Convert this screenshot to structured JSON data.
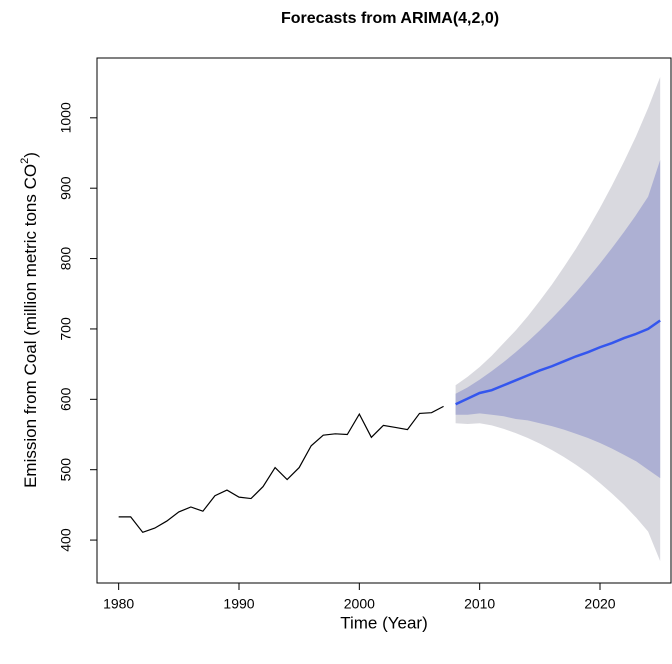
{
  "chart_data": {
    "type": "line",
    "title": "Forecasts from ARIMA(4,2,0)",
    "xlabel": "Time (Year)",
    "ylabel": [
      "Emission from Coal (million metric tons CO",
      "2",
      ")"
    ],
    "xlim": [
      1978.2,
      2025.9
    ],
    "ylim": [
      339,
      1085
    ],
    "xticks": [
      1980,
      1990,
      2000,
      2010,
      2020
    ],
    "yticks": [
      400,
      500,
      600,
      700,
      800,
      900,
      1000
    ],
    "grid": false,
    "bands": [
      {
        "color": "#d9d9df",
        "x": [
          2008,
          2009,
          2010,
          2011,
          2012,
          2013,
          2014,
          2015,
          2016,
          2017,
          2018,
          2019,
          2020,
          2021,
          2022,
          2023,
          2024,
          2025
        ],
        "lower": [
          566,
          565,
          566,
          563,
          558,
          552,
          545,
          537,
          528,
          518,
          507,
          495,
          481,
          466,
          450,
          432,
          412,
          370
        ],
        "upper": [
          620,
          632,
          646,
          662,
          680,
          698,
          718,
          740,
          763,
          788,
          814,
          842,
          872,
          904,
          938,
          974,
          1014,
          1058
        ]
      },
      {
        "color": "#adb0d3",
        "x": [
          2008,
          2009,
          2010,
          2011,
          2012,
          2013,
          2014,
          2015,
          2016,
          2017,
          2018,
          2019,
          2020,
          2021,
          2022,
          2023,
          2024,
          2025
        ],
        "lower": [
          578,
          578,
          580,
          578,
          576,
          572,
          570,
          566,
          562,
          557,
          551,
          545,
          538,
          530,
          521,
          512,
          500,
          488
        ],
        "upper": [
          608,
          617,
          628,
          640,
          653,
          667,
          682,
          698,
          715,
          733,
          752,
          772,
          793,
          815,
          838,
          862,
          888,
          940
        ]
      }
    ],
    "series": [
      {
        "color": "#000000",
        "x": [
          1980,
          1981,
          1982,
          1983,
          1984,
          1985,
          1986,
          1987,
          1988,
          1989,
          1990,
          1991,
          1992,
          1993,
          1994,
          1995,
          1996,
          1997,
          1998,
          1999,
          2000,
          2001,
          2002,
          2003,
          2004,
          2005,
          2006,
          2007
        ],
        "values": [
          433,
          433,
          411,
          417,
          427,
          440,
          447,
          441,
          463,
          471,
          461,
          459,
          476,
          503,
          486,
          503,
          534,
          549,
          551,
          550,
          579,
          546,
          563,
          560,
          557,
          580,
          581,
          590
        ]
      },
      {
        "color": "#3456ee",
        "x": [
          2008,
          2009,
          2010,
          2011,
          2012,
          2013,
          2014,
          2015,
          2016,
          2017,
          2018,
          2019,
          2020,
          2021,
          2022,
          2023,
          2024,
          2025
        ],
        "values": [
          593,
          601,
          609,
          613,
          620,
          627,
          634,
          641,
          647,
          654,
          661,
          667,
          674,
          680,
          687,
          693,
          700,
          712
        ]
      }
    ]
  }
}
